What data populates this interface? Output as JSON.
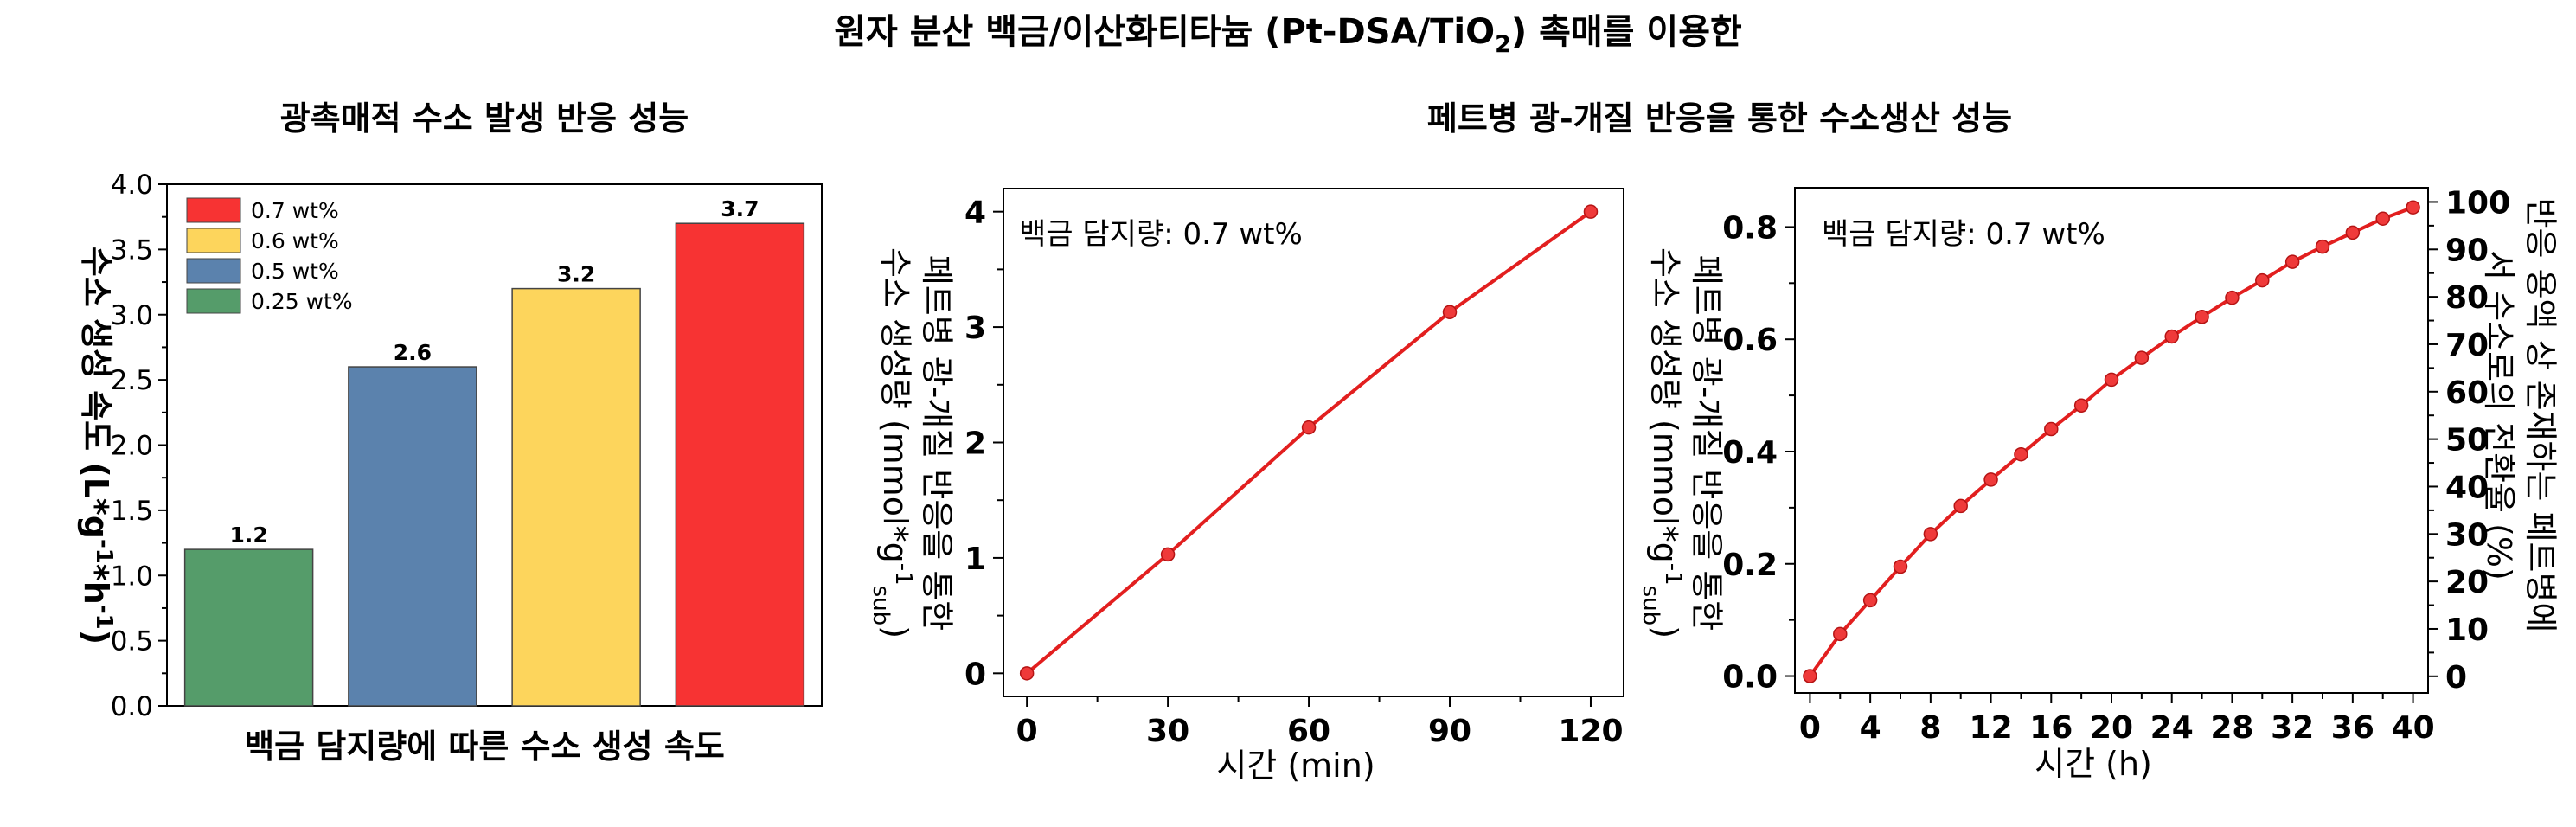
{
  "figure": {
    "title_line1": "원자 분산 백금/이산화티타늄 (Pt-DSA/TiO",
    "title_sub": "2",
    "title_line1_end": ") 촉매를 이용한",
    "subtitle_left": "광촉매적 수소 발생 반응 성능",
    "subtitle_right": "페트병 광-개질 반응을 통한 수소생산 성능"
  },
  "colors": {
    "bar_0_25": "#559c6a",
    "bar_0_5": "#5b82ad",
    "bar_0_6": "#fdd55c",
    "bar_0_7": "#f73333",
    "line": "#e21f1f",
    "marker": "#ef3a3a"
  },
  "chart_data": [
    {
      "type": "bar",
      "categories": [
        "0.25 wt%",
        "0.5 wt%",
        "0.6 wt%",
        "0.7 wt%"
      ],
      "values": [
        1.2,
        2.6,
        3.2,
        3.7
      ],
      "data_labels": [
        "1.2",
        "2.6",
        "3.2",
        "3.7"
      ],
      "legend": [
        "0.7 wt%",
        "0.6 wt%",
        "0.5 wt%",
        "0.25 wt%"
      ],
      "legend_position": "top-left",
      "xlabel": "백금 담지량에 따른 수소 생성 속도",
      "ylabel_main": "수소 생성 속도 (L*g",
      "ylabel_sup1": "-1",
      "ylabel_mid": "*h",
      "ylabel_sup2": "-1",
      "ylabel_end": ")",
      "ylim": [
        0,
        4.0
      ],
      "yticks": [
        "0.0",
        "0.5",
        "1.0",
        "1.5",
        "2.0",
        "2.5",
        "3.0",
        "3.5",
        "4.0"
      ]
    },
    {
      "type": "line",
      "x": [
        0,
        30,
        60,
        90,
        120
      ],
      "y": [
        0,
        1.03,
        2.13,
        3.13,
        4.0
      ],
      "annotation": "백금 담지량: 0.7 wt%",
      "xlabel": "시간 (min)",
      "ylabel_line1": "페트병 광-개질 반응을 통한",
      "ylabel_line2_main": "수소 생성량 (mmol*g",
      "ylabel_line2_sup": "-1",
      "ylabel_line2_sub": "sub",
      "ylabel_line2_end": ")",
      "xlim": [
        -5,
        127
      ],
      "ylim": [
        -0.2,
        4.2
      ],
      "xticks": [
        "0",
        "30",
        "60",
        "90",
        "120"
      ],
      "yticks": [
        "0",
        "1",
        "2",
        "3",
        "4"
      ]
    },
    {
      "type": "line",
      "x": [
        0,
        2,
        4,
        6,
        8,
        10,
        12,
        14,
        16,
        18,
        20,
        22,
        24,
        26,
        28,
        30,
        32,
        34,
        36,
        38,
        40
      ],
      "y": [
        0.0,
        0.075,
        0.135,
        0.195,
        0.253,
        0.303,
        0.35,
        0.395,
        0.44,
        0.482,
        0.528,
        0.567,
        0.605,
        0.64,
        0.674,
        0.705,
        0.738,
        0.765,
        0.79,
        0.815,
        0.835
      ],
      "annotation": "백금 담지량: 0.7 wt%",
      "xlabel": "시간 (h)",
      "ylabel_line1": "페트병 광-개질 반응을 통한",
      "ylabel_line2_main": "수소 생성량 (mmol*g",
      "ylabel_line2_sup": "-1",
      "ylabel_line2_sub": "sub",
      "ylabel_line2_end": ")",
      "ylabel_right_line1": "반응 용액 상 존재하는 페트병에",
      "ylabel_right_line2": "서 수소로의 전환율 (%)",
      "xlim": [
        -1,
        41
      ],
      "ylim": [
        -0.03,
        0.87
      ],
      "y2lim": [
        -3.5,
        103
      ],
      "xticks": [
        "0",
        "4",
        "8",
        "12",
        "16",
        "20",
        "24",
        "28",
        "32",
        "36",
        "40"
      ],
      "yticks": [
        "0.0",
        "0.2",
        "0.4",
        "0.6",
        "0.8"
      ],
      "y2ticks": [
        "0",
        "10",
        "20",
        "30",
        "40",
        "50",
        "60",
        "70",
        "80",
        "90",
        "100"
      ]
    }
  ]
}
